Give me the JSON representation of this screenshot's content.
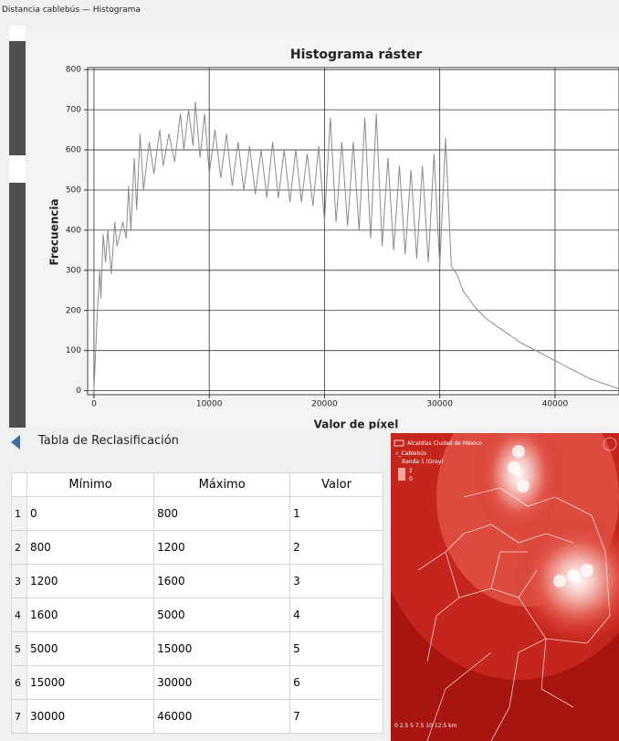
{
  "window_title": "Distancia cablebús — Histograma",
  "chart_data": {
    "type": "line",
    "title": "Histograma ráster",
    "x_label": "Valor de píxel",
    "y_label": "Frecuencia",
    "color": "#8a8a8a",
    "grid": true,
    "xlim": [
      -550,
      45550
    ],
    "ylim": [
      -10,
      805
    ],
    "xticks": [
      0,
      10000,
      20000,
      30000,
      40000
    ],
    "yticks": [
      0,
      100,
      200,
      300,
      400,
      500,
      600,
      700,
      800
    ],
    "x": [
      0,
      300,
      500,
      600,
      800,
      1000,
      1200,
      1500,
      1800,
      2000,
      2500,
      2800,
      3000,
      3200,
      3500,
      3700,
      4000,
      4300,
      4800,
      5200,
      5700,
      6000,
      6500,
      7000,
      7500,
      7800,
      8200,
      8600,
      8800,
      9200,
      9600,
      10000,
      10500,
      11000,
      11500,
      12000,
      12500,
      13000,
      13500,
      14000,
      14500,
      15000,
      15500,
      16000,
      16500,
      17000,
      17500,
      18000,
      18500,
      19000,
      19500,
      20000,
      20500,
      21000,
      21500,
      22000,
      22500,
      23000,
      23500,
      24000,
      24500,
      25000,
      25500,
      26000,
      26500,
      27000,
      27500,
      28000,
      28500,
      29000,
      29500,
      30000,
      30500,
      31000,
      31500,
      32000,
      33000,
      34000,
      35000,
      36000,
      37000,
      38000,
      39000,
      40000,
      41000,
      42000,
      43000,
      44000,
      45500
    ],
    "values": [
      0,
      200,
      300,
      230,
      390,
      320,
      400,
      290,
      420,
      360,
      420,
      380,
      510,
      400,
      580,
      450,
      640,
      500,
      620,
      540,
      650,
      560,
      640,
      570,
      690,
      600,
      700,
      610,
      720,
      580,
      690,
      540,
      650,
      530,
      640,
      510,
      620,
      500,
      610,
      490,
      600,
      480,
      620,
      480,
      600,
      470,
      600,
      470,
      590,
      460,
      610,
      420,
      680,
      420,
      620,
      410,
      620,
      400,
      680,
      380,
      690,
      360,
      580,
      350,
      560,
      340,
      550,
      330,
      560,
      320,
      590,
      310,
      630,
      310,
      290,
      250,
      210,
      180,
      160,
      140,
      120,
      105,
      90,
      75,
      60,
      45,
      30,
      20,
      5
    ]
  },
  "table": {
    "title": "Tabla de Reclasificación",
    "headers": [
      "Mínimo",
      "Máximo",
      "Valor"
    ],
    "row_numbers": [
      "1",
      "2",
      "3",
      "4",
      "5",
      "6",
      "7"
    ],
    "rows": [
      [
        "0",
        "800",
        "1"
      ],
      [
        "800",
        "1200",
        "2"
      ],
      [
        "1200",
        "1600",
        "3"
      ],
      [
        "1600",
        "5000",
        "4"
      ],
      [
        "5000",
        "15000",
        "5"
      ],
      [
        "15000",
        "30000",
        "6"
      ],
      [
        "30000",
        "46000",
        "7"
      ]
    ]
  },
  "map": {
    "legend": [
      "Alcaldías Ciudad de México",
      "r_Cablebús",
      "Banda 1 (Gray)",
      "2",
      "0"
    ],
    "scale": "0  2.5  5  7.5  10  12.5 km"
  }
}
